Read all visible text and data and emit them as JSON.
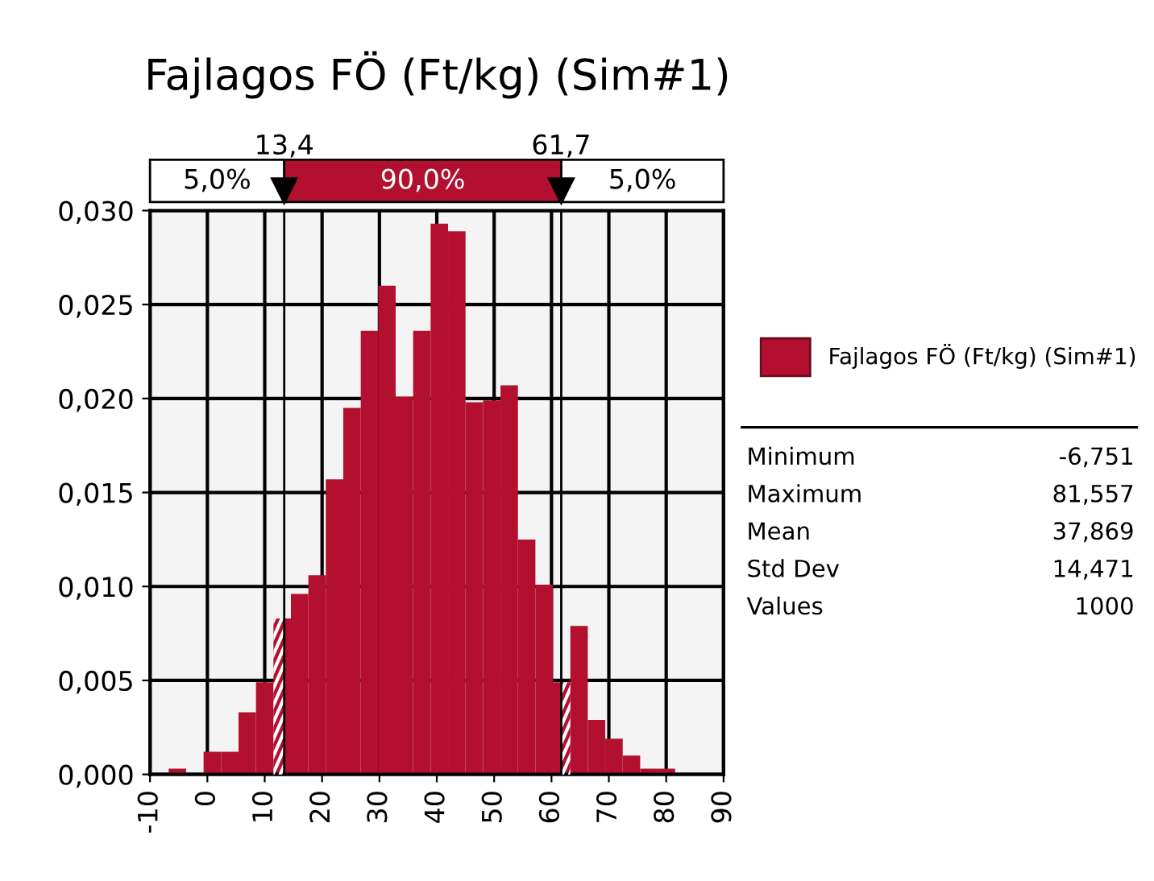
{
  "chart_data": {
    "type": "histogram",
    "title": "Fajlagos FÖ (Ft/kg) (Sim#1)",
    "bins": [
      -6.751,
      -3.706,
      -0.661,
      2.384,
      5.429,
      8.474,
      11.519,
      14.564,
      17.609,
      20.654,
      23.699,
      26.744,
      29.789,
      32.834,
      35.879,
      38.924,
      41.969,
      45.014,
      48.059,
      51.104,
      54.149,
      57.194,
      60.239,
      63.284,
      66.329,
      69.374,
      72.419,
      75.464,
      78.509,
      81.557
    ],
    "series": [
      {
        "name": "Fajlagos FÖ (Ft/kg) (Sim#1)",
        "color": "#b3102f",
        "values": [
          0.0003,
          0.0,
          0.0012,
          0.0012,
          0.0033,
          0.0049,
          0.0083,
          0.0096,
          0.0106,
          0.0157,
          0.0195,
          0.0236,
          0.026,
          0.0201,
          0.0236,
          0.0293,
          0.0289,
          0.0198,
          0.0199,
          0.0207,
          0.0125,
          0.0101,
          0.0049,
          0.0079,
          0.0029,
          0.0019,
          0.001,
          0.0003,
          0.0003
        ]
      }
    ],
    "xlim": [
      -10,
      90
    ],
    "xticks": [
      -10,
      0,
      10,
      20,
      30,
      40,
      50,
      60,
      70,
      80,
      90
    ],
    "ylim": [
      0,
      0.03
    ],
    "yticks": [
      {
        "value": 0,
        "label": "0,000"
      },
      {
        "value": 0.005,
        "label": "0,005"
      },
      {
        "value": 0.01,
        "label": "0,010"
      },
      {
        "value": 0.015,
        "label": "0,015"
      },
      {
        "value": 0.02,
        "label": "0,020"
      },
      {
        "value": 0.025,
        "label": "0,025"
      },
      {
        "value": 0.03,
        "label": "0,030"
      }
    ],
    "grid": true,
    "legend": "right",
    "ref_lines": [
      {
        "axis": "x",
        "value": 13.4,
        "label": "13,4",
        "color": "#000000"
      },
      {
        "axis": "x",
        "value": 61.7,
        "label": "61,7",
        "color": "#000000"
      }
    ],
    "annotations": [
      "5,0%",
      "90,0%",
      "5,0%",
      "Minimum",
      "-6,751",
      "Maximum",
      "81,557",
      "Mean",
      "37,869",
      "Std Dev",
      "14,471",
      "Values",
      "1000"
    ]
  }
}
